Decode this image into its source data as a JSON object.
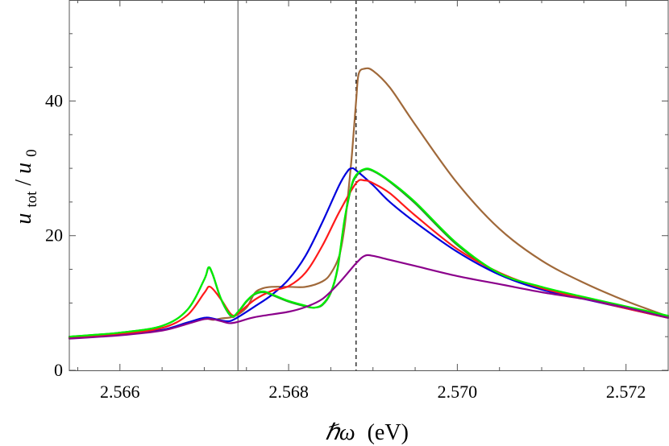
{
  "chart_data": {
    "type": "line",
    "xlabel": "ℏω (eV)",
    "xlabel_parts": {
      "symbol": "ℏω",
      "unit": "(eV)"
    },
    "ylabel": "u_tot/u_0",
    "ylabel_parts": {
      "u1": "u",
      "sub1": "tot",
      "slash": "/",
      "u2": "u",
      "sub2": "0"
    },
    "xlim": [
      2.5654,
      2.5725
    ],
    "ylim": [
      0,
      55
    ],
    "xticks": [
      2.566,
      2.568,
      2.57,
      2.572
    ],
    "xtick_labels": [
      "2.566",
      "2.568",
      "2.570",
      "2.572"
    ],
    "yticks": [
      0,
      20,
      40
    ],
    "ytick_labels": [
      "0",
      "20",
      "40"
    ],
    "x_minor_step": 0.0005,
    "y_minor_step": 5,
    "grid": false,
    "vlines": [
      {
        "x": 2.5674,
        "style": "solid",
        "color": "#808080"
      },
      {
        "x": 2.5688,
        "style": "dashed",
        "color": "#000000"
      }
    ],
    "series": [
      {
        "color": "#2e8b2e",
        "points": [
          [
            2.5654,
            5.0
          ],
          [
            2.566,
            5.6
          ],
          [
            2.5665,
            6.6
          ],
          [
            2.5668,
            9.0
          ],
          [
            2.567,
            13.5
          ],
          [
            2.56705,
            15.2
          ],
          [
            2.5671,
            14.2
          ],
          [
            2.5672,
            10.5
          ],
          [
            2.56732,
            8.0
          ],
          [
            2.5674,
            8.6
          ],
          [
            2.5675,
            10.2
          ],
          [
            2.5676,
            11.3
          ],
          [
            2.5677,
            11.6
          ],
          [
            2.5678,
            11.2
          ],
          [
            2.568,
            10.2
          ],
          [
            2.5682,
            9.5
          ],
          [
            2.5683,
            9.3
          ],
          [
            2.5684,
            9.7
          ],
          [
            2.5685,
            11.5
          ],
          [
            2.56858,
            15.0
          ],
          [
            2.56866,
            22.0
          ],
          [
            2.56874,
            27.0
          ],
          [
            2.5688,
            28.8
          ],
          [
            2.5689,
            29.8
          ],
          [
            2.569,
            29.6
          ],
          [
            2.5692,
            28.0
          ],
          [
            2.5695,
            24.8
          ],
          [
            2.57,
            18.6
          ],
          [
            2.5705,
            14.3
          ],
          [
            2.571,
            12.3
          ],
          [
            2.5715,
            10.8
          ],
          [
            2.572,
            9.4
          ],
          [
            2.5725,
            8.0
          ]
        ]
      },
      {
        "color": "#a0693a",
        "points": [
          [
            2.5654,
            4.8
          ],
          [
            2.566,
            5.3
          ],
          [
            2.5665,
            6.0
          ],
          [
            2.5668,
            7.1
          ],
          [
            2.567,
            7.7
          ],
          [
            2.5671,
            7.5
          ],
          [
            2.5672,
            7.7
          ],
          [
            2.56735,
            8.0
          ],
          [
            2.5675,
            9.3
          ],
          [
            2.5676,
            11.5
          ],
          [
            2.5677,
            12.2
          ],
          [
            2.5678,
            12.4
          ],
          [
            2.568,
            12.4
          ],
          [
            2.5682,
            12.4
          ],
          [
            2.5684,
            13.2
          ],
          [
            2.5685,
            14.4
          ],
          [
            2.5686,
            17.0
          ],
          [
            2.56866,
            21.0
          ],
          [
            2.5687,
            25.5
          ],
          [
            2.56875,
            32.0
          ],
          [
            2.5688,
            40.0
          ],
          [
            2.56883,
            44.0
          ],
          [
            2.5689,
            44.8
          ],
          [
            2.569,
            44.5
          ],
          [
            2.5692,
            42.0
          ],
          [
            2.5695,
            36.5
          ],
          [
            2.57,
            27.8
          ],
          [
            2.5705,
            21.0
          ],
          [
            2.571,
            16.3
          ],
          [
            2.5715,
            13.0
          ],
          [
            2.572,
            10.3
          ],
          [
            2.5725,
            8.0
          ]
        ]
      },
      {
        "color": "#0000dd",
        "points": [
          [
            2.5654,
            4.8
          ],
          [
            2.566,
            5.3
          ],
          [
            2.5665,
            6.0
          ],
          [
            2.5668,
            7.1
          ],
          [
            2.567,
            7.8
          ],
          [
            2.5671,
            7.7
          ],
          [
            2.5672,
            7.4
          ],
          [
            2.5673,
            7.3
          ],
          [
            2.5674,
            7.9
          ],
          [
            2.5676,
            9.5
          ],
          [
            2.5678,
            11.2
          ],
          [
            2.568,
            13.5
          ],
          [
            2.5682,
            17.0
          ],
          [
            2.5684,
            22.0
          ],
          [
            2.5686,
            27.5
          ],
          [
            2.5687,
            29.6
          ],
          [
            2.56875,
            30.0
          ],
          [
            2.5688,
            29.7
          ],
          [
            2.569,
            27.5
          ],
          [
            2.5692,
            25.0
          ],
          [
            2.5695,
            22.0
          ],
          [
            2.57,
            17.6
          ],
          [
            2.5705,
            14.2
          ],
          [
            2.571,
            12.0
          ],
          [
            2.5715,
            10.6
          ],
          [
            2.572,
            9.2
          ],
          [
            2.5725,
            7.8
          ]
        ]
      },
      {
        "color": "#ff1a1a",
        "points": [
          [
            2.5654,
            4.8
          ],
          [
            2.566,
            5.4
          ],
          [
            2.5665,
            6.3
          ],
          [
            2.5668,
            8.2
          ],
          [
            2.567,
            11.5
          ],
          [
            2.56707,
            12.4
          ],
          [
            2.5672,
            10.5
          ],
          [
            2.56732,
            8.3
          ],
          [
            2.5674,
            8.5
          ],
          [
            2.5676,
            10.5
          ],
          [
            2.5678,
            11.8
          ],
          [
            2.568,
            12.5
          ],
          [
            2.5682,
            14.5
          ],
          [
            2.5684,
            18.5
          ],
          [
            2.5686,
            23.5
          ],
          [
            2.5688,
            27.8
          ],
          [
            2.5689,
            28.2
          ],
          [
            2.569,
            27.8
          ],
          [
            2.5692,
            26.3
          ],
          [
            2.5695,
            23.0
          ],
          [
            2.57,
            18.0
          ],
          [
            2.5705,
            14.5
          ],
          [
            2.571,
            12.2
          ],
          [
            2.5715,
            10.7
          ],
          [
            2.572,
            9.2
          ],
          [
            2.5725,
            7.8
          ]
        ]
      },
      {
        "color": "#00ee00",
        "points": [
          [
            2.5654,
            5.0
          ],
          [
            2.566,
            5.6
          ],
          [
            2.5665,
            6.6
          ],
          [
            2.5668,
            9.0
          ],
          [
            2.567,
            13.5
          ],
          [
            2.56705,
            15.3
          ],
          [
            2.5671,
            14.3
          ],
          [
            2.5672,
            10.6
          ],
          [
            2.56732,
            8.1
          ],
          [
            2.5674,
            8.7
          ],
          [
            2.5675,
            10.3
          ],
          [
            2.5676,
            11.4
          ],
          [
            2.5677,
            11.7
          ],
          [
            2.5678,
            11.3
          ],
          [
            2.568,
            10.3
          ],
          [
            2.5682,
            9.6
          ],
          [
            2.5683,
            9.3
          ],
          [
            2.5684,
            9.8
          ],
          [
            2.5685,
            11.6
          ],
          [
            2.56858,
            15.2
          ],
          [
            2.56866,
            22.2
          ],
          [
            2.56874,
            27.2
          ],
          [
            2.5688,
            29.0
          ],
          [
            2.5689,
            29.9
          ],
          [
            2.569,
            29.7
          ],
          [
            2.5692,
            28.1
          ],
          [
            2.5695,
            25.0
          ],
          [
            2.57,
            18.8
          ],
          [
            2.5705,
            14.4
          ],
          [
            2.571,
            12.4
          ],
          [
            2.5715,
            10.9
          ],
          [
            2.572,
            9.5
          ],
          [
            2.5725,
            8.1
          ]
        ]
      },
      {
        "color": "#8b008b",
        "points": [
          [
            2.5654,
            4.7
          ],
          [
            2.566,
            5.2
          ],
          [
            2.5665,
            5.9
          ],
          [
            2.5668,
            6.9
          ],
          [
            2.567,
            7.6
          ],
          [
            2.5671,
            7.6
          ],
          [
            2.5672,
            7.3
          ],
          [
            2.5673,
            7.0
          ],
          [
            2.5674,
            7.2
          ],
          [
            2.5676,
            7.9
          ],
          [
            2.568,
            8.7
          ],
          [
            2.5682,
            9.4
          ],
          [
            2.5684,
            10.6
          ],
          [
            2.5686,
            13.0
          ],
          [
            2.5688,
            15.9
          ],
          [
            2.5689,
            17.0
          ],
          [
            2.569,
            17.0
          ],
          [
            2.5692,
            16.4
          ],
          [
            2.5695,
            15.5
          ],
          [
            2.57,
            14.0
          ],
          [
            2.5705,
            12.8
          ],
          [
            2.571,
            11.6
          ],
          [
            2.5715,
            10.6
          ],
          [
            2.572,
            9.3
          ],
          [
            2.5725,
            7.8
          ]
        ]
      }
    ]
  }
}
